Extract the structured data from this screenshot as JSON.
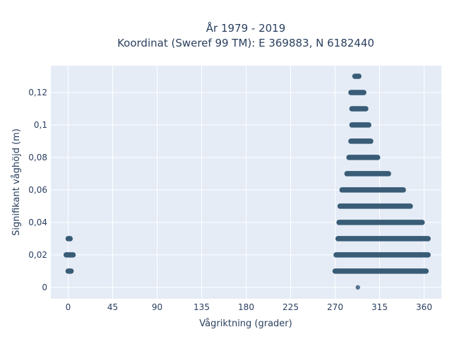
{
  "chart_data": {
    "type": "scatter",
    "title_line1": "År 1979 - 2019",
    "title_line2": "Koordinat (Sweref 99 TM): E 369883, N 6182440",
    "xlabel": "Vågriktning (grader)",
    "ylabel": "Signifikant våghöjd (m)",
    "xlim": [
      -17.5,
      377.5
    ],
    "ylim": [
      -0.007,
      0.1365
    ],
    "grid": true,
    "background": "#e5ecf6",
    "marker_color": "#2f5470",
    "x_ticks": [
      0,
      45,
      90,
      135,
      180,
      225,
      270,
      315,
      360
    ],
    "x_tick_labels": [
      "0",
      "45",
      "90",
      "135",
      "180",
      "225",
      "270",
      "315",
      "360"
    ],
    "y_ticks": [
      0,
      0.02,
      0.04,
      0.06,
      0.08,
      0.1,
      0.12
    ],
    "y_tick_labels": [
      "0",
      "0,02",
      "0,04",
      "0,06",
      "0,08",
      "0,1",
      "0,12"
    ],
    "series": [
      {
        "values": [
          {
            "y": 0.0,
            "x_from": 293,
            "x_to": 293
          },
          {
            "y": 0.01,
            "x_from": 270,
            "x_to": 362
          },
          {
            "y": 0.01,
            "x_from": 0,
            "x_to": 3
          },
          {
            "y": 0.02,
            "x_from": 271,
            "x_to": 364
          },
          {
            "y": 0.02,
            "x_from": -2,
            "x_to": 5
          },
          {
            "y": 0.03,
            "x_from": 273,
            "x_to": 364
          },
          {
            "y": 0.03,
            "x_from": 0,
            "x_to": 2
          },
          {
            "y": 0.04,
            "x_from": 274,
            "x_to": 358
          },
          {
            "y": 0.05,
            "x_from": 275,
            "x_to": 346
          },
          {
            "y": 0.06,
            "x_from": 277,
            "x_to": 339
          },
          {
            "y": 0.07,
            "x_from": 282,
            "x_to": 324
          },
          {
            "y": 0.08,
            "x_from": 284,
            "x_to": 313
          },
          {
            "y": 0.09,
            "x_from": 286,
            "x_to": 306
          },
          {
            "y": 0.1,
            "x_from": 287,
            "x_to": 304
          },
          {
            "y": 0.11,
            "x_from": 287,
            "x_to": 301
          },
          {
            "y": 0.12,
            "x_from": 286,
            "x_to": 299
          },
          {
            "y": 0.13,
            "x_from": 290,
            "x_to": 294
          }
        ]
      }
    ]
  }
}
